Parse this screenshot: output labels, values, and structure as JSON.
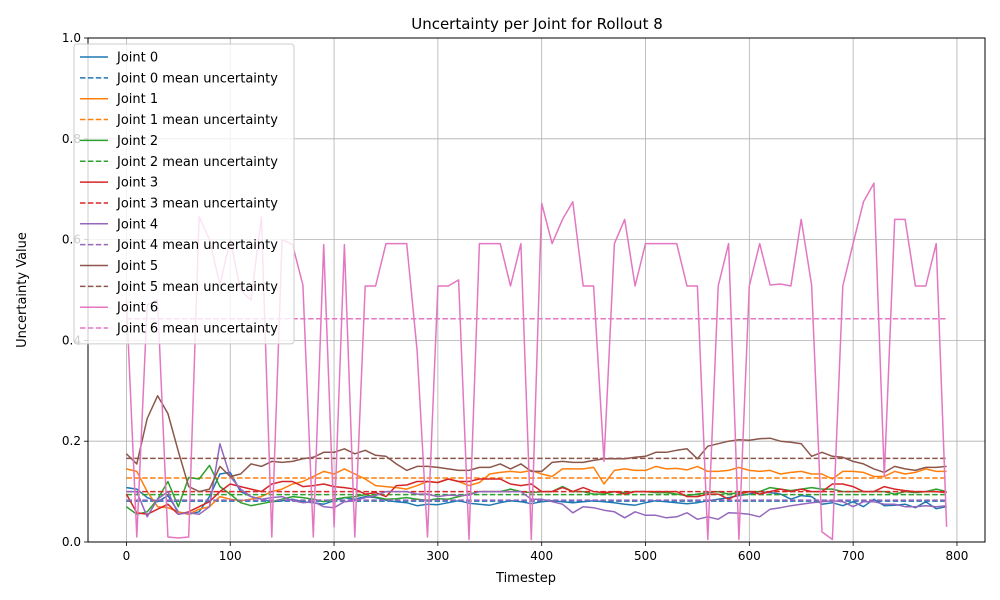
{
  "chart_data": {
    "type": "line",
    "title": "Uncertainty per Joint for Rollout 8",
    "xlabel": "Timestep",
    "ylabel": "Uncertainty Value",
    "xlim": [
      -37,
      827
    ],
    "ylim": [
      0,
      1
    ],
    "xticks": [
      0,
      100,
      200,
      300,
      400,
      500,
      600,
      700,
      800
    ],
    "yticks": [
      0.0,
      0.2,
      0.4,
      0.6,
      0.8,
      1.0
    ],
    "grid": true,
    "legend_position": "top-left",
    "x": [
      0,
      10,
      20,
      30,
      40,
      50,
      60,
      70,
      80,
      90,
      100,
      110,
      120,
      130,
      140,
      150,
      160,
      170,
      180,
      190,
      200,
      210,
      220,
      230,
      240,
      250,
      260,
      270,
      280,
      290,
      300,
      310,
      320,
      330,
      340,
      350,
      360,
      370,
      380,
      390,
      400,
      410,
      420,
      430,
      440,
      450,
      460,
      470,
      480,
      490,
      500,
      510,
      520,
      530,
      540,
      550,
      560,
      570,
      580,
      590,
      600,
      610,
      620,
      630,
      640,
      650,
      660,
      670,
      680,
      690,
      700,
      710,
      720,
      730,
      740,
      750,
      760,
      770,
      780,
      790
    ],
    "series": [
      {
        "name": "Joint 0",
        "color": "#1f77b4",
        "linestyle": "solid",
        "values": [
          0.108,
          0.105,
          0.088,
          0.08,
          0.092,
          0.06,
          0.055,
          0.06,
          0.09,
          0.135,
          0.138,
          0.1,
          0.09,
          0.085,
          0.08,
          0.082,
          0.085,
          0.08,
          0.078,
          0.075,
          0.082,
          0.088,
          0.085,
          0.09,
          0.088,
          0.083,
          0.08,
          0.078,
          0.072,
          0.075,
          0.074,
          0.078,
          0.082,
          0.077,
          0.075,
          0.073,
          0.078,
          0.082,
          0.08,
          0.076,
          0.08,
          0.082,
          0.08,
          0.078,
          0.08,
          0.082,
          0.08,
          0.078,
          0.075,
          0.073,
          0.078,
          0.082,
          0.08,
          0.078,
          0.076,
          0.078,
          0.082,
          0.085,
          0.088,
          0.092,
          0.095,
          0.1,
          0.098,
          0.095,
          0.085,
          0.092,
          0.09,
          0.075,
          0.078,
          0.072,
          0.08,
          0.07,
          0.085,
          0.072,
          0.073,
          0.075,
          0.068,
          0.08,
          0.066,
          0.07
        ]
      },
      {
        "name": "Joint 0 mean uncertainty",
        "color": "#1f77b4",
        "linestyle": "dashed",
        "constant": 0.081
      },
      {
        "name": "Joint 1",
        "color": "#ff7f0e",
        "linestyle": "solid",
        "values": [
          0.145,
          0.14,
          0.1,
          0.07,
          0.068,
          0.06,
          0.055,
          0.065,
          0.07,
          0.09,
          0.085,
          0.082,
          0.085,
          0.09,
          0.1,
          0.105,
          0.115,
          0.12,
          0.13,
          0.14,
          0.135,
          0.145,
          0.135,
          0.125,
          0.112,
          0.11,
          0.108,
          0.105,
          0.112,
          0.12,
          0.118,
          0.125,
          0.12,
          0.112,
          0.118,
          0.135,
          0.138,
          0.14,
          0.138,
          0.142,
          0.135,
          0.13,
          0.145,
          0.145,
          0.145,
          0.148,
          0.115,
          0.142,
          0.145,
          0.142,
          0.142,
          0.15,
          0.145,
          0.146,
          0.143,
          0.15,
          0.14,
          0.14,
          0.142,
          0.148,
          0.142,
          0.14,
          0.142,
          0.135,
          0.138,
          0.14,
          0.135,
          0.135,
          0.125,
          0.14,
          0.14,
          0.138,
          0.13,
          0.13,
          0.14,
          0.135,
          0.138,
          0.145,
          0.14,
          0.14
        ]
      },
      {
        "name": "Joint 1 mean uncertainty",
        "color": "#ff7f0e",
        "linestyle": "dashed",
        "constant": 0.127
      },
      {
        "name": "Joint 2",
        "color": "#2ca02c",
        "linestyle": "solid",
        "values": [
          0.07,
          0.055,
          0.06,
          0.085,
          0.12,
          0.07,
          0.128,
          0.125,
          0.152,
          0.11,
          0.095,
          0.078,
          0.072,
          0.076,
          0.08,
          0.085,
          0.09,
          0.088,
          0.085,
          0.08,
          0.085,
          0.088,
          0.09,
          0.094,
          0.089,
          0.085,
          0.086,
          0.088,
          0.085,
          0.083,
          0.086,
          0.085,
          0.09,
          0.095,
          0.1,
          0.1,
          0.1,
          0.105,
          0.1,
          0.098,
          0.1,
          0.1,
          0.11,
          0.1,
          0.1,
          0.095,
          0.095,
          0.1,
          0.098,
          0.1,
          0.1,
          0.098,
          0.098,
          0.095,
          0.092,
          0.095,
          0.098,
          0.1,
          0.095,
          0.098,
          0.1,
          0.1,
          0.108,
          0.105,
          0.102,
          0.105,
          0.108,
          0.105,
          0.105,
          0.1,
          0.1,
          0.1,
          0.1,
          0.1,
          0.095,
          0.1,
          0.098,
          0.1,
          0.105,
          0.1
        ]
      },
      {
        "name": "Joint 2 mean uncertainty",
        "color": "#2ca02c",
        "linestyle": "dashed",
        "constant": 0.094
      },
      {
        "name": "Joint 3",
        "color": "#d62728",
        "linestyle": "solid",
        "values": [
          0.095,
          0.058,
          0.055,
          0.065,
          0.075,
          0.055,
          0.06,
          0.07,
          0.08,
          0.1,
          0.115,
          0.11,
          0.105,
          0.1,
          0.115,
          0.12,
          0.12,
          0.11,
          0.112,
          0.115,
          0.11,
          0.108,
          0.105,
          0.095,
          0.098,
          0.09,
          0.112,
          0.113,
          0.12,
          0.12,
          0.118,
          0.125,
          0.12,
          0.12,
          0.125,
          0.125,
          0.125,
          0.115,
          0.112,
          0.115,
          0.1,
          0.1,
          0.108,
          0.1,
          0.108,
          0.1,
          0.098,
          0.1,
          0.095,
          0.1,
          0.1,
          0.1,
          0.1,
          0.1,
          0.09,
          0.09,
          0.095,
          0.095,
          0.085,
          0.095,
          0.1,
          0.095,
          0.1,
          0.105,
          0.1,
          0.105,
          0.1,
          0.1,
          0.115,
          0.115,
          0.11,
          0.1,
          0.1,
          0.11,
          0.105,
          0.102,
          0.1,
          0.1,
          0.1,
          0.098
        ]
      },
      {
        "name": "Joint 3 mean uncertainty",
        "color": "#d62728",
        "linestyle": "dashed",
        "constant": 0.1
      },
      {
        "name": "Joint 4",
        "color": "#9467bd",
        "linestyle": "solid",
        "values": [
          0.1,
          0.1,
          0.05,
          0.085,
          0.1,
          0.055,
          0.058,
          0.055,
          0.07,
          0.195,
          0.13,
          0.105,
          0.09,
          0.085,
          0.088,
          0.09,
          0.082,
          0.078,
          0.08,
          0.07,
          0.068,
          0.08,
          0.082,
          0.088,
          0.092,
          0.1,
          0.1,
          0.1,
          0.095,
          0.095,
          0.09,
          0.093,
          0.092,
          0.093,
          0.1,
          0.1,
          0.1,
          0.1,
          0.1,
          0.085,
          0.085,
          0.08,
          0.075,
          0.058,
          0.07,
          0.068,
          0.063,
          0.06,
          0.048,
          0.06,
          0.053,
          0.053,
          0.048,
          0.05,
          0.058,
          0.045,
          0.05,
          0.045,
          0.058,
          0.057,
          0.055,
          0.05,
          0.065,
          0.068,
          0.072,
          0.075,
          0.078,
          0.08,
          0.082,
          0.08,
          0.07,
          0.08,
          0.08,
          0.075,
          0.075,
          0.07,
          0.07,
          0.072,
          0.07,
          0.072
        ]
      },
      {
        "name": "Joint 4 mean uncertainty",
        "color": "#9467bd",
        "linestyle": "dashed",
        "constant": 0.083
      },
      {
        "name": "Joint 5",
        "color": "#8c564b",
        "linestyle": "solid",
        "values": [
          0.175,
          0.155,
          0.245,
          0.29,
          0.255,
          0.18,
          0.11,
          0.1,
          0.105,
          0.15,
          0.13,
          0.135,
          0.155,
          0.15,
          0.16,
          0.158,
          0.16,
          0.165,
          0.168,
          0.178,
          0.178,
          0.185,
          0.175,
          0.182,
          0.172,
          0.17,
          0.155,
          0.142,
          0.15,
          0.15,
          0.148,
          0.145,
          0.142,
          0.142,
          0.148,
          0.148,
          0.155,
          0.145,
          0.155,
          0.14,
          0.14,
          0.158,
          0.16,
          0.158,
          0.158,
          0.162,
          0.165,
          0.165,
          0.165,
          0.168,
          0.17,
          0.178,
          0.178,
          0.182,
          0.185,
          0.165,
          0.19,
          0.195,
          0.2,
          0.203,
          0.202,
          0.205,
          0.206,
          0.2,
          0.198,
          0.195,
          0.17,
          0.178,
          0.17,
          0.168,
          0.16,
          0.155,
          0.145,
          0.138,
          0.15,
          0.145,
          0.142,
          0.148,
          0.148,
          0.15
        ]
      },
      {
        "name": "Joint 5 mean uncertainty",
        "color": "#8c564b",
        "linestyle": "dashed",
        "constant": 0.166
      },
      {
        "name": "Joint 6",
        "color": "#e377c2",
        "linestyle": "solid",
        "values": [
          0.48,
          0.01,
          0.47,
          0.48,
          0.01,
          0.008,
          0.01,
          0.645,
          0.6,
          0.51,
          0.6,
          0.5,
          0.48,
          0.645,
          0.01,
          0.6,
          0.59,
          0.51,
          0.01,
          0.59,
          0.03,
          0.59,
          0.01,
          0.508,
          0.508,
          0.592,
          0.592,
          0.592,
          0.38,
          0.01,
          0.508,
          0.508,
          0.52,
          0.005,
          0.592,
          0.592,
          0.592,
          0.508,
          0.592,
          0.005,
          0.672,
          0.592,
          0.64,
          0.675,
          0.508,
          0.508,
          0.16,
          0.592,
          0.64,
          0.508,
          0.592,
          0.592,
          0.592,
          0.592,
          0.508,
          0.508,
          0.005,
          0.508,
          0.592,
          0.005,
          0.508,
          0.592,
          0.51,
          0.512,
          0.508,
          0.64,
          0.51,
          0.02,
          0.005,
          0.508,
          0.592,
          0.675,
          0.712,
          0.13,
          0.64,
          0.64,
          0.508,
          0.508,
          0.592,
          0.03
        ]
      },
      {
        "name": "Joint 6 mean uncertainty",
        "color": "#e377c2",
        "linestyle": "dashed",
        "constant": 0.443
      }
    ]
  }
}
